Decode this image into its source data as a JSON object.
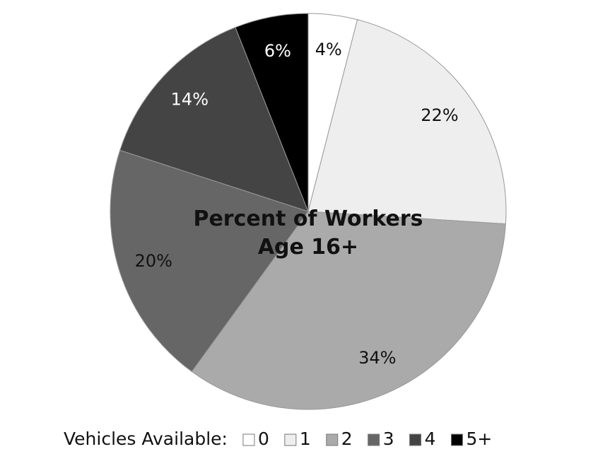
{
  "chart_data": {
    "type": "pie",
    "title": "Percent of Workers Age 16+",
    "legend_title": "Vehicles Available:",
    "categories": [
      "0",
      "1",
      "2",
      "3",
      "4",
      "5+"
    ],
    "values": [
      4,
      22,
      34,
      20,
      14,
      6
    ],
    "value_labels": [
      "4%",
      "22%",
      "34%",
      "20%",
      "14%",
      "6%"
    ],
    "colors": [
      "#ffffff",
      "#eeeeee",
      "#aaaaaa",
      "#666666",
      "#444444",
      "#000000"
    ],
    "legend": "bottom"
  }
}
